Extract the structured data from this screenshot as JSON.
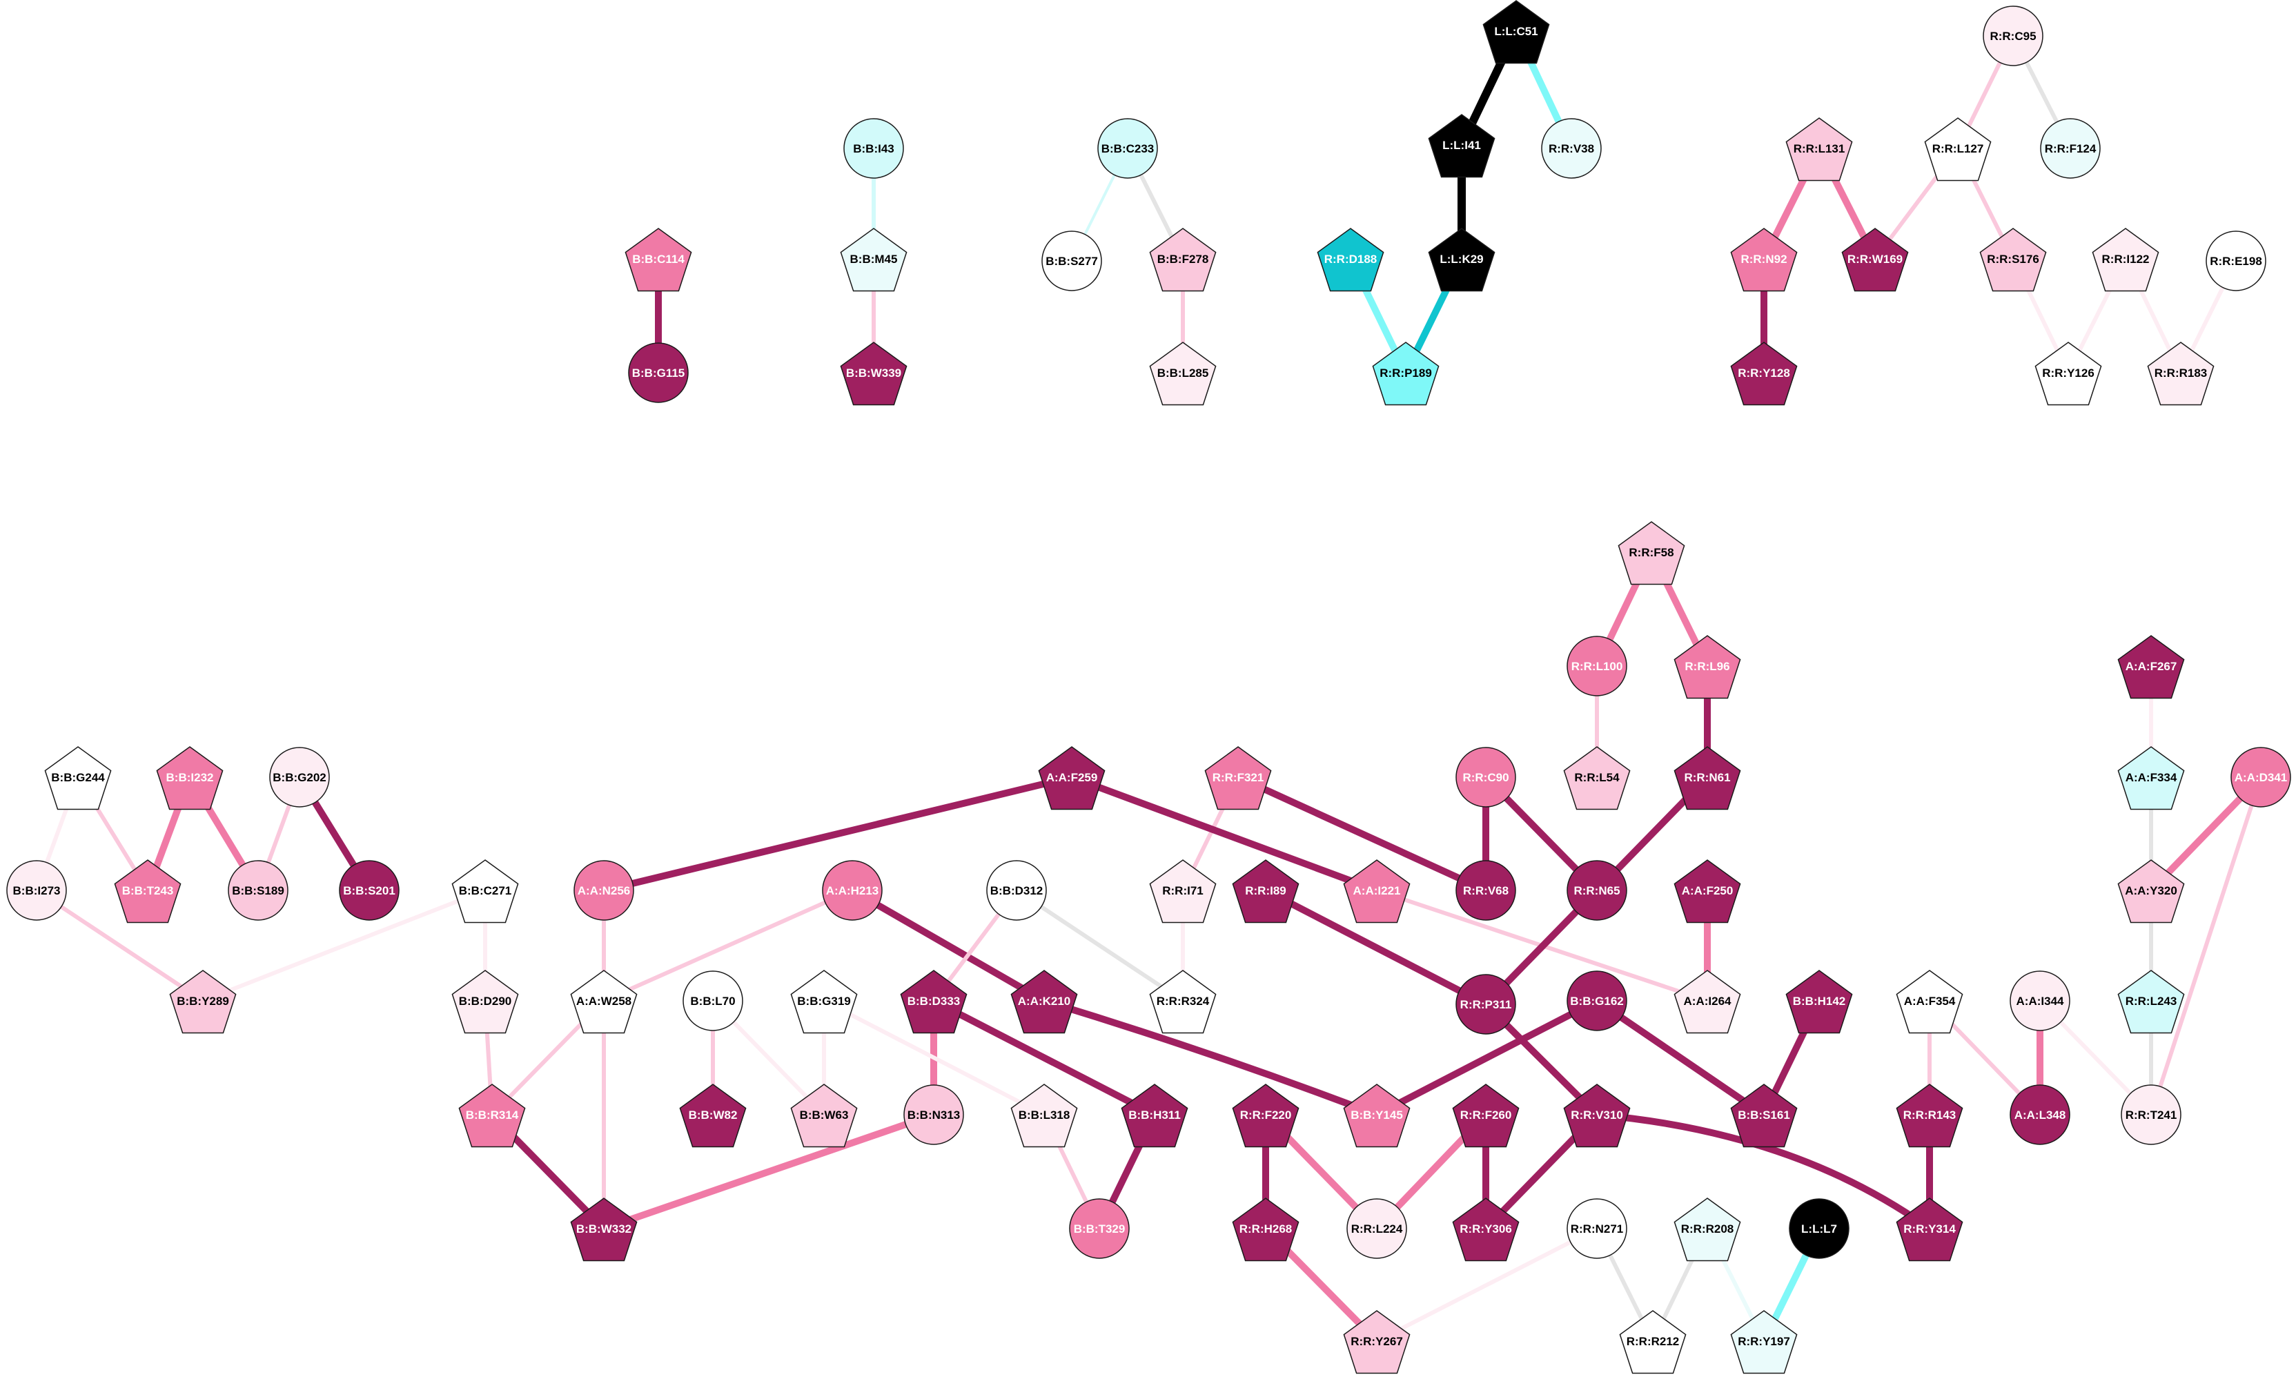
{
  "palette": {
    "white": "#ffffff",
    "pale_cyan": "#eafbfb",
    "light_cyan": "#d2fafa",
    "cyan": "#7ff8f8",
    "dark_cyan": "#10c4cf",
    "pale_pink": "#fdedf3",
    "light_pink": "#fac8dc",
    "pink": "#f07aa6",
    "magenta": "#9f2060",
    "black": "#000000",
    "gray_edge": "#e4e4e4"
  },
  "nodes": [
    {
      "id": "B:B:C114",
      "shape": "pentagon",
      "fill": "pink"
    },
    {
      "id": "B:B:G115",
      "shape": "circle",
      "fill": "magenta"
    },
    {
      "id": "B:B:I43",
      "shape": "circle",
      "fill": "light_cyan"
    },
    {
      "id": "B:B:M45",
      "shape": "pentagon",
      "fill": "pale_cyan"
    },
    {
      "id": "B:B:W339",
      "shape": "pentagon",
      "fill": "magenta"
    },
    {
      "id": "B:B:C233",
      "shape": "circle",
      "fill": "light_cyan"
    },
    {
      "id": "B:B:S277",
      "shape": "circle",
      "fill": "white"
    },
    {
      "id": "B:B:F278",
      "shape": "pentagon",
      "fill": "light_pink"
    },
    {
      "id": "B:B:L285",
      "shape": "pentagon",
      "fill": "pale_pink"
    },
    {
      "id": "L:L:C51",
      "shape": "pentagon",
      "fill": "black"
    },
    {
      "id": "L:L:I41",
      "shape": "pentagon",
      "fill": "black"
    },
    {
      "id": "R:R:V38",
      "shape": "circle",
      "fill": "pale_cyan"
    },
    {
      "id": "L:L:K29",
      "shape": "pentagon",
      "fill": "black"
    },
    {
      "id": "R:R:D188",
      "shape": "pentagon",
      "fill": "dark_cyan"
    },
    {
      "id": "R:R:P189",
      "shape": "pentagon",
      "fill": "cyan"
    },
    {
      "id": "R:R:C95",
      "shape": "circle",
      "fill": "pale_pink"
    },
    {
      "id": "R:R:L131",
      "shape": "pentagon",
      "fill": "light_pink"
    },
    {
      "id": "R:R:L127",
      "shape": "pentagon",
      "fill": "white"
    },
    {
      "id": "R:R:F124",
      "shape": "circle",
      "fill": "pale_cyan"
    },
    {
      "id": "R:R:N92",
      "shape": "pentagon",
      "fill": "pink"
    },
    {
      "id": "R:R:W169",
      "shape": "pentagon",
      "fill": "magenta"
    },
    {
      "id": "R:R:S176",
      "shape": "pentagon",
      "fill": "light_pink"
    },
    {
      "id": "R:R:I122",
      "shape": "pentagon",
      "fill": "pale_pink"
    },
    {
      "id": "R:R:E198",
      "shape": "circle",
      "fill": "white"
    },
    {
      "id": "R:R:Y128",
      "shape": "pentagon",
      "fill": "magenta"
    },
    {
      "id": "R:R:Y126",
      "shape": "pentagon",
      "fill": "white"
    },
    {
      "id": "R:R:R183",
      "shape": "pentagon",
      "fill": "pale_pink"
    },
    {
      "id": "R:R:F58",
      "shape": "pentagon",
      "fill": "light_pink"
    },
    {
      "id": "R:R:L100",
      "shape": "circle",
      "fill": "pink"
    },
    {
      "id": "R:R:L96",
      "shape": "pentagon",
      "fill": "pink"
    },
    {
      "id": "R:R:L54",
      "shape": "pentagon",
      "fill": "light_pink"
    },
    {
      "id": "R:R:N61",
      "shape": "pentagon",
      "fill": "magenta"
    },
    {
      "id": "A:A:F267",
      "shape": "pentagon",
      "fill": "magenta"
    },
    {
      "id": "A:A:F334",
      "shape": "pentagon",
      "fill": "light_cyan"
    },
    {
      "id": "A:A:D341",
      "shape": "circle",
      "fill": "pink"
    },
    {
      "id": "A:A:Y320",
      "shape": "pentagon",
      "fill": "light_pink"
    },
    {
      "id": "R:R:L243",
      "shape": "pentagon",
      "fill": "light_cyan"
    },
    {
      "id": "R:R:T241",
      "shape": "circle",
      "fill": "pale_pink"
    },
    {
      "id": "A:A:I344",
      "shape": "circle",
      "fill": "pale_pink"
    },
    {
      "id": "A:A:L348",
      "shape": "circle",
      "fill": "magenta"
    },
    {
      "id": "A:A:F354",
      "shape": "pentagon",
      "fill": "white"
    },
    {
      "id": "R:R:R143",
      "shape": "pentagon",
      "fill": "magenta"
    },
    {
      "id": "R:R:Y314",
      "shape": "pentagon",
      "fill": "magenta"
    },
    {
      "id": "B:B:G244",
      "shape": "pentagon",
      "fill": "white"
    },
    {
      "id": "B:B:I232",
      "shape": "pentagon",
      "fill": "pink"
    },
    {
      "id": "B:B:G202",
      "shape": "circle",
      "fill": "pale_pink"
    },
    {
      "id": "B:B:I273",
      "shape": "circle",
      "fill": "pale_pink"
    },
    {
      "id": "B:B:T243",
      "shape": "pentagon",
      "fill": "pink"
    },
    {
      "id": "B:B:S189",
      "shape": "circle",
      "fill": "light_pink"
    },
    {
      "id": "B:B:S201",
      "shape": "circle",
      "fill": "magenta"
    },
    {
      "id": "B:B:Y289",
      "shape": "pentagon",
      "fill": "light_pink"
    },
    {
      "id": "B:B:C271",
      "shape": "pentagon",
      "fill": "white"
    },
    {
      "id": "B:B:D290",
      "shape": "pentagon",
      "fill": "pale_pink"
    },
    {
      "id": "A:A:F259",
      "shape": "pentagon",
      "fill": "magenta"
    },
    {
      "id": "R:R:F321",
      "shape": "pentagon",
      "fill": "pink"
    },
    {
      "id": "R:R:C90",
      "shape": "circle",
      "fill": "pink"
    },
    {
      "id": "A:A:N256",
      "shape": "circle",
      "fill": "pink"
    },
    {
      "id": "A:A:H213",
      "shape": "circle",
      "fill": "pink"
    },
    {
      "id": "B:B:D312",
      "shape": "circle",
      "fill": "white"
    },
    {
      "id": "R:R:I71",
      "shape": "pentagon",
      "fill": "pale_pink"
    },
    {
      "id": "R:R:I89",
      "shape": "pentagon",
      "fill": "magenta"
    },
    {
      "id": "A:A:I221",
      "shape": "pentagon",
      "fill": "pink"
    },
    {
      "id": "R:R:V68",
      "shape": "circle",
      "fill": "magenta"
    },
    {
      "id": "R:R:N65",
      "shape": "circle",
      "fill": "magenta"
    },
    {
      "id": "A:A:F250",
      "shape": "pentagon",
      "fill": "magenta"
    },
    {
      "id": "A:A:W258",
      "shape": "pentagon",
      "fill": "white"
    },
    {
      "id": "B:B:L70",
      "shape": "circle",
      "fill": "white"
    },
    {
      "id": "B:B:G319",
      "shape": "pentagon",
      "fill": "white"
    },
    {
      "id": "B:B:D333",
      "shape": "pentagon",
      "fill": "magenta"
    },
    {
      "id": "A:A:K210",
      "shape": "pentagon",
      "fill": "magenta"
    },
    {
      "id": "R:R:R324",
      "shape": "pentagon",
      "fill": "white"
    },
    {
      "id": "R:R:P311",
      "shape": "circle",
      "fill": "magenta"
    },
    {
      "id": "B:B:G162",
      "shape": "circle",
      "fill": "magenta"
    },
    {
      "id": "A:A:I264",
      "shape": "pentagon",
      "fill": "pale_pink"
    },
    {
      "id": "B:B:H142",
      "shape": "pentagon",
      "fill": "magenta"
    },
    {
      "id": "B:B:R314",
      "shape": "pentagon",
      "fill": "pink"
    },
    {
      "id": "B:B:W82",
      "shape": "pentagon",
      "fill": "magenta"
    },
    {
      "id": "B:B:W63",
      "shape": "pentagon",
      "fill": "light_pink"
    },
    {
      "id": "B:B:N313",
      "shape": "circle",
      "fill": "light_pink"
    },
    {
      "id": "B:B:L318",
      "shape": "pentagon",
      "fill": "pale_pink"
    },
    {
      "id": "B:B:H311",
      "shape": "pentagon",
      "fill": "magenta"
    },
    {
      "id": "R:R:F220",
      "shape": "pentagon",
      "fill": "magenta"
    },
    {
      "id": "B:B:Y145",
      "shape": "pentagon",
      "fill": "pink"
    },
    {
      "id": "R:R:F260",
      "shape": "pentagon",
      "fill": "magenta"
    },
    {
      "id": "R:R:V310",
      "shape": "pentagon",
      "fill": "magenta"
    },
    {
      "id": "B:B:S161",
      "shape": "pentagon",
      "fill": "magenta"
    },
    {
      "id": "B:B:W332",
      "shape": "pentagon",
      "fill": "magenta"
    },
    {
      "id": "B:B:T329",
      "shape": "circle",
      "fill": "pink"
    },
    {
      "id": "R:R:H268",
      "shape": "pentagon",
      "fill": "magenta"
    },
    {
      "id": "R:R:L224",
      "shape": "circle",
      "fill": "pale_pink"
    },
    {
      "id": "R:R:Y306",
      "shape": "pentagon",
      "fill": "magenta"
    },
    {
      "id": "R:R:N271",
      "shape": "circle",
      "fill": "white"
    },
    {
      "id": "R:R:R208",
      "shape": "pentagon",
      "fill": "pale_cyan"
    },
    {
      "id": "L:L:L7",
      "shape": "circle",
      "fill": "black"
    },
    {
      "id": "R:R:Y267",
      "shape": "pentagon",
      "fill": "light_pink"
    },
    {
      "id": "R:R:R212",
      "shape": "pentagon",
      "fill": "white"
    },
    {
      "id": "R:R:Y197",
      "shape": "pentagon",
      "fill": "pale_cyan"
    }
  ],
  "edges": [
    {
      "from": "B:B:C114",
      "to": "B:B:G115",
      "color": "magenta",
      "weight": 3
    },
    {
      "from": "B:B:I43",
      "to": "B:B:M45",
      "color": "light_cyan",
      "weight": 2
    },
    {
      "from": "B:B:M45",
      "to": "B:B:W339",
      "color": "light_pink",
      "weight": 2
    },
    {
      "from": "B:B:C233",
      "to": "B:B:S277",
      "color": "light_cyan",
      "weight": 1
    },
    {
      "from": "B:B:C233",
      "to": "B:B:F278",
      "color": "gray_edge",
      "weight": 2
    },
    {
      "from": "B:B:F278",
      "to": "B:B:L285",
      "color": "light_pink",
      "weight": 2
    },
    {
      "from": "L:L:C51",
      "to": "L:L:I41",
      "color": "black",
      "weight": 4
    },
    {
      "from": "L:L:C51",
      "to": "R:R:V38",
      "color": "cyan",
      "weight": 3
    },
    {
      "from": "L:L:I41",
      "to": "L:L:K29",
      "color": "black",
      "weight": 4
    },
    {
      "from": "L:L:K29",
      "to": "R:R:P189",
      "color": "dark_cyan",
      "weight": 3
    },
    {
      "from": "R:R:D188",
      "to": "R:R:P189",
      "color": "cyan",
      "weight": 3
    },
    {
      "from": "R:R:C95",
      "to": "R:R:L127",
      "color": "light_pink",
      "weight": 2
    },
    {
      "from": "R:R:C95",
      "to": "R:R:F124",
      "color": "gray_edge",
      "weight": 2
    },
    {
      "from": "R:R:L131",
      "to": "R:R:N92",
      "color": "pink",
      "weight": 3
    },
    {
      "from": "R:R:L131",
      "to": "R:R:W169",
      "color": "pink",
      "weight": 3
    },
    {
      "from": "R:R:L127",
      "to": "R:R:W169",
      "color": "light_pink",
      "weight": 2
    },
    {
      "from": "R:R:L127",
      "to": "R:R:S176",
      "color": "light_pink",
      "weight": 2
    },
    {
      "from": "R:R:N92",
      "to": "R:R:Y128",
      "color": "magenta",
      "weight": 3
    },
    {
      "from": "R:R:S176",
      "to": "R:R:Y126",
      "color": "pale_pink",
      "weight": 2
    },
    {
      "from": "R:R:I122",
      "to": "R:R:Y126",
      "color": "pale_pink",
      "weight": 2
    },
    {
      "from": "R:R:I122",
      "to": "R:R:R183",
      "color": "pale_pink",
      "weight": 2
    },
    {
      "from": "R:R:E198",
      "to": "R:R:R183",
      "color": "pale_pink",
      "weight": 2
    },
    {
      "from": "R:R:F58",
      "to": "R:R:L100",
      "color": "pink",
      "weight": 3
    },
    {
      "from": "R:R:F58",
      "to": "R:R:L96",
      "color": "pink",
      "weight": 3
    },
    {
      "from": "R:R:L100",
      "to": "R:R:L54",
      "color": "light_pink",
      "weight": 2
    },
    {
      "from": "R:R:L96",
      "to": "R:R:N61",
      "color": "magenta",
      "weight": 3
    },
    {
      "from": "R:R:N61",
      "to": "R:R:N65",
      "color": "magenta",
      "weight": 3
    },
    {
      "from": "R:R:C90",
      "to": "R:R:V68",
      "color": "magenta",
      "weight": 3
    },
    {
      "from": "R:R:C90",
      "to": "R:R:N65",
      "color": "magenta",
      "weight": 3
    },
    {
      "from": "R:R:F321",
      "to": "R:R:V68",
      "color": "magenta",
      "weight": 3
    },
    {
      "from": "R:R:F321",
      "to": "R:R:I71",
      "color": "light_pink",
      "weight": 2
    },
    {
      "from": "R:R:I71",
      "to": "R:R:R324",
      "color": "pale_pink",
      "weight": 2
    },
    {
      "from": "B:B:D312",
      "to": "R:R:R324",
      "color": "gray_edge",
      "weight": 2
    },
    {
      "from": "A:A:F259",
      "to": "A:A:N256",
      "color": "magenta",
      "weight": 3
    },
    {
      "from": "A:A:F259",
      "to": "A:A:I221",
      "color": "magenta",
      "weight": 3
    },
    {
      "from": "A:A:I221",
      "to": "A:A:I264",
      "color": "light_pink",
      "weight": 2
    },
    {
      "from": "A:A:F250",
      "to": "A:A:I264",
      "color": "pink",
      "weight": 3
    },
    {
      "from": "R:R:N65",
      "to": "R:R:P311",
      "color": "magenta",
      "weight": 3
    },
    {
      "from": "R:R:I89",
      "to": "R:R:P311",
      "color": "magenta",
      "weight": 3
    },
    {
      "from": "R:R:P311",
      "to": "R:R:V310",
      "color": "magenta",
      "weight": 3
    },
    {
      "from": "B:B:G162",
      "to": "B:B:Y145",
      "color": "magenta",
      "weight": 3
    },
    {
      "from": "B:B:G162",
      "to": "B:B:S161",
      "color": "magenta",
      "weight": 3
    },
    {
      "from": "B:B:H142",
      "to": "B:B:S161",
      "color": "magenta",
      "weight": 3
    },
    {
      "from": "A:A:H213",
      "to": "A:A:K210",
      "color": "magenta",
      "weight": 3
    },
    {
      "from": "A:A:H213",
      "to": "A:A:W258",
      "color": "light_pink",
      "weight": 2
    },
    {
      "from": "A:A:K210",
      "to": "B:B:Y145",
      "color": "magenta",
      "weight": 3
    },
    {
      "from": "A:A:N256",
      "to": "A:A:W258",
      "color": "light_pink",
      "weight": 2
    },
    {
      "from": "A:A:W258",
      "to": "B:B:R314",
      "color": "light_pink",
      "weight": 2
    },
    {
      "from": "A:A:W258",
      "to": "B:B:W332",
      "color": "light_pink",
      "weight": 2
    },
    {
      "from": "B:B:C271",
      "to": "B:B:D290",
      "color": "pale_pink",
      "weight": 2
    },
    {
      "from": "B:B:C271",
      "to": "B:B:Y289",
      "color": "pale_pink",
      "weight": 2
    },
    {
      "from": "B:B:D290",
      "to": "B:B:R314",
      "color": "light_pink",
      "weight": 2
    },
    {
      "from": "B:B:R314",
      "to": "B:B:W332",
      "color": "magenta",
      "weight": 3
    },
    {
      "from": "B:B:N313",
      "to": "B:B:W332",
      "color": "pink",
      "weight": 3
    },
    {
      "from": "B:B:D312",
      "to": "B:B:D333",
      "color": "light_pink",
      "weight": 2
    },
    {
      "from": "B:B:D333",
      "to": "B:B:N313",
      "color": "pink",
      "weight": 3
    },
    {
      "from": "B:B:D333",
      "to": "B:B:H311",
      "color": "magenta",
      "weight": 3
    },
    {
      "from": "B:B:H311",
      "to": "B:B:T329",
      "color": "magenta",
      "weight": 3
    },
    {
      "from": "B:B:L318",
      "to": "B:B:T329",
      "color": "light_pink",
      "weight": 2
    },
    {
      "from": "B:B:G319",
      "to": "B:B:L318",
      "color": "pale_pink",
      "weight": 2
    },
    {
      "from": "B:B:G319",
      "to": "B:B:W63",
      "color": "pale_pink",
      "weight": 2
    },
    {
      "from": "B:B:L70",
      "to": "B:B:W82",
      "color": "light_pink",
      "weight": 2
    },
    {
      "from": "B:B:L70",
      "to": "B:B:W63",
      "color": "pale_pink",
      "weight": 2
    },
    {
      "from": "B:B:G244",
      "to": "B:B:I273",
      "color": "pale_pink",
      "weight": 2
    },
    {
      "from": "B:B:G244",
      "to": "B:B:T243",
      "color": "light_pink",
      "weight": 2
    },
    {
      "from": "B:B:I232",
      "to": "B:B:T243",
      "color": "pink",
      "weight": 3
    },
    {
      "from": "B:B:I232",
      "to": "B:B:S189",
      "color": "pink",
      "weight": 3
    },
    {
      "from": "B:B:G202",
      "to": "B:B:S189",
      "color": "light_pink",
      "weight": 2
    },
    {
      "from": "B:B:G202",
      "to": "B:B:S201",
      "color": "magenta",
      "weight": 3
    },
    {
      "from": "B:B:I273",
      "to": "B:B:Y289",
      "color": "light_pink",
      "weight": 2
    },
    {
      "from": "R:R:F220",
      "to": "R:R:H268",
      "color": "magenta",
      "weight": 3
    },
    {
      "from": "R:R:F220",
      "to": "R:R:L224",
      "color": "pink",
      "weight": 3
    },
    {
      "from": "R:R:F260",
      "to": "R:R:L224",
      "color": "pink",
      "weight": 3
    },
    {
      "from": "R:R:F260",
      "to": "R:R:Y306",
      "color": "magenta",
      "weight": 3
    },
    {
      "from": "R:R:V310",
      "to": "R:R:Y306",
      "color": "magenta",
      "weight": 3
    },
    {
      "from": "R:R:V310",
      "to": "R:R:Y314",
      "color": "magenta",
      "weight": 3
    },
    {
      "from": "R:R:R143",
      "to": "R:R:Y314",
      "color": "magenta",
      "weight": 3
    },
    {
      "from": "A:A:F354",
      "to": "R:R:R143",
      "color": "light_pink",
      "weight": 2
    },
    {
      "from": "A:A:F354",
      "to": "A:A:L348",
      "color": "light_pink",
      "weight": 2
    },
    {
      "from": "A:A:I344",
      "to": "A:A:L348",
      "color": "pink",
      "weight": 3
    },
    {
      "from": "A:A:I344",
      "to": "R:R:T241",
      "color": "pale_pink",
      "weight": 2
    },
    {
      "from": "A:A:F267",
      "to": "A:A:F334",
      "color": "pale_pink",
      "weight": 2
    },
    {
      "from": "A:A:F334",
      "to": "A:A:Y320",
      "color": "gray_edge",
      "weight": 2
    },
    {
      "from": "A:A:D341",
      "to": "A:A:Y320",
      "color": "pink",
      "weight": 3
    },
    {
      "from": "A:A:D341",
      "to": "R:R:T241",
      "color": "light_pink",
      "weight": 2
    },
    {
      "from": "A:A:Y320",
      "to": "R:R:L243",
      "color": "gray_edge",
      "weight": 2
    },
    {
      "from": "R:R:L243",
      "to": "R:R:T241",
      "color": "gray_edge",
      "weight": 2
    },
    {
      "from": "R:R:H268",
      "to": "R:R:Y267",
      "color": "pink",
      "weight": 3
    },
    {
      "from": "R:R:N271",
      "to": "R:R:Y267",
      "color": "pale_pink",
      "weight": 2
    },
    {
      "from": "R:R:N271",
      "to": "R:R:R212",
      "color": "gray_edge",
      "weight": 2
    },
    {
      "from": "R:R:R208",
      "to": "R:R:R212",
      "color": "gray_edge",
      "weight": 2
    },
    {
      "from": "R:R:R208",
      "to": "R:R:Y197",
      "color": "pale_cyan",
      "weight": 2
    },
    {
      "from": "L:L:L7",
      "to": "R:R:Y197",
      "color": "cyan",
      "weight": 3
    }
  ]
}
